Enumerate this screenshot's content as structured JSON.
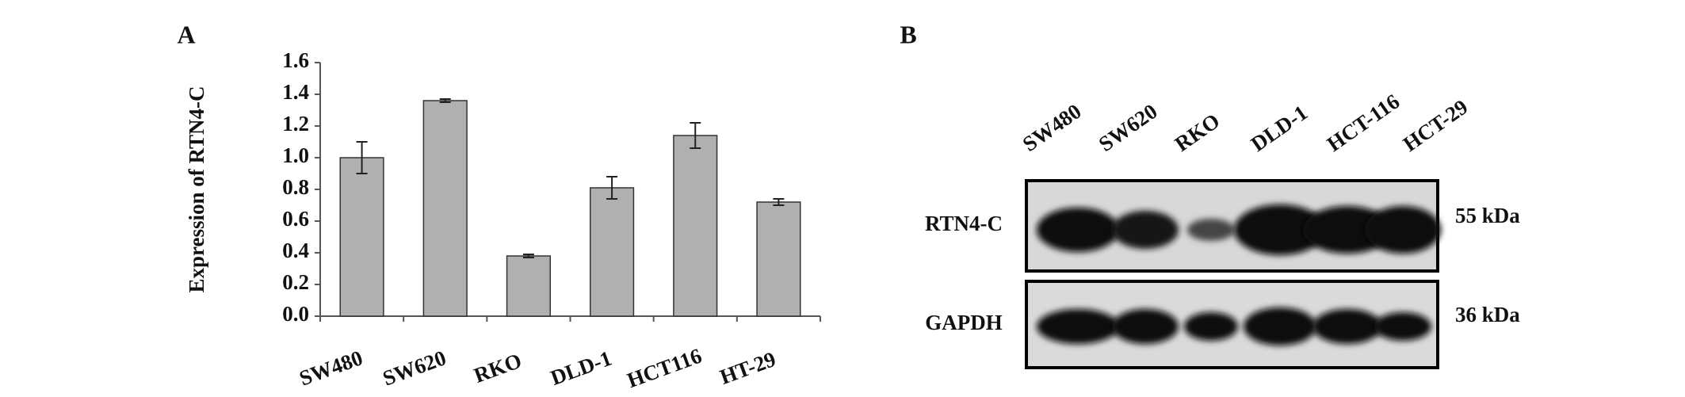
{
  "chart_data": {
    "type": "bar",
    "panel_label": "A",
    "y_label": "Expression of RTN4-C",
    "categories": [
      "SW480",
      "SW620",
      "RKO",
      "DLD-1",
      "HCT116",
      "HT-29"
    ],
    "values": [
      1.0,
      1.36,
      0.38,
      0.81,
      1.14,
      0.72
    ],
    "errors": [
      0.1,
      0.01,
      0.01,
      0.07,
      0.08,
      0.02
    ],
    "color": "#b0b0b0",
    "ylim": [
      0,
      1.6
    ],
    "yticks": [
      {
        "value": 0,
        "label": "0.0"
      },
      {
        "value": 0.2,
        "label": "0.2"
      },
      {
        "value": 0.4,
        "label": "0.4"
      },
      {
        "value": 0.6,
        "label": "0.6"
      },
      {
        "value": 0.8,
        "label": "0.8"
      },
      {
        "value": 1.0,
        "label": "1.0"
      },
      {
        "value": 1.2,
        "label": "1.2"
      },
      {
        "value": 1.4,
        "label": "1.4"
      },
      {
        "value": 1.6,
        "label": "1.6"
      }
    ],
    "grid": false
  },
  "blot": {
    "panel_label": "B",
    "lanes": [
      "SW480",
      "SW620",
      "RKO",
      "DLD-1",
      "HCT-116",
      "HCT-29"
    ],
    "rows": [
      {
        "label": "RTN4-C",
        "size": "55 kDa"
      },
      {
        "label": "GAPDH",
        "size": "36 kDa"
      }
    ]
  }
}
